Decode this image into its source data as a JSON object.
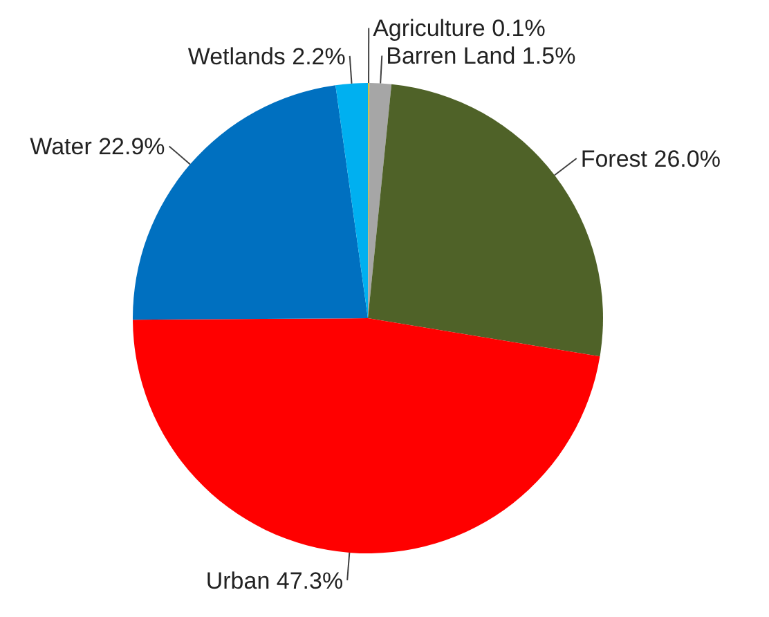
{
  "chart_data": {
    "type": "pie",
    "categories": [
      "Agriculture",
      "Barren Land",
      "Forest",
      "Urban",
      "Water",
      "Wetlands"
    ],
    "values": [
      0.1,
      1.5,
      26.0,
      47.3,
      22.9,
      2.2
    ],
    "value_labels": [
      "0.1%",
      "1.5%",
      "26.0%",
      "47.3%",
      "22.9%",
      "2.2%"
    ],
    "colors": [
      "#d4c040",
      "#a6a6a6",
      "#4f6228",
      "#ff0000",
      "#0070c0",
      "#00b0f0"
    ]
  }
}
